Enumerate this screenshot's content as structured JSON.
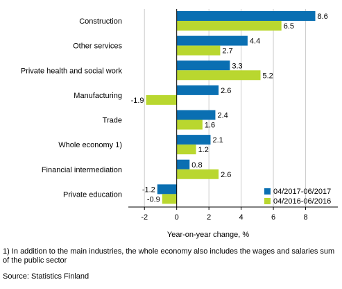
{
  "chart_data": {
    "type": "bar",
    "orientation": "horizontal",
    "categories": [
      "Construction",
      "Other services",
      "Private health and social work",
      "Manufacturing",
      "Trade",
      "Whole economy 1)",
      "Financial intermediation",
      "Private education"
    ],
    "series": [
      {
        "name": "04/2017-06/2017",
        "color": "#0a6fb2",
        "values": [
          8.6,
          4.4,
          3.3,
          2.6,
          2.4,
          2.1,
          0.8,
          -1.2
        ]
      },
      {
        "name": "04/2016-06/2016",
        "color": "#b9d72f",
        "values": [
          6.5,
          2.7,
          5.2,
          -1.9,
          1.6,
          1.2,
          2.6,
          -0.9
        ]
      }
    ],
    "value_labels": [
      [
        "8.6",
        "4.4",
        "3.3",
        "2.6",
        "2.4",
        "2.1",
        "0.8",
        "-1.2"
      ],
      [
        "6.5",
        "2.7",
        "5.2",
        "-1.9",
        "1.6",
        "1.2",
        "2.6",
        "-0.9"
      ]
    ],
    "xlabel": "Year-on-year change, %",
    "xlim": [
      -3,
      10
    ],
    "xticks": [
      -2,
      0,
      2,
      4,
      6,
      8
    ],
    "xtick_labels": [
      "-2",
      "0",
      "2",
      "4",
      "6",
      "8"
    ],
    "grid": "vertical",
    "legend_position": "bottom-right"
  },
  "footnote": "1) In addition to the main industries, the whole economy also includes the wages and salaries sum of the public sector",
  "source": "Source: Statistics Finland"
}
